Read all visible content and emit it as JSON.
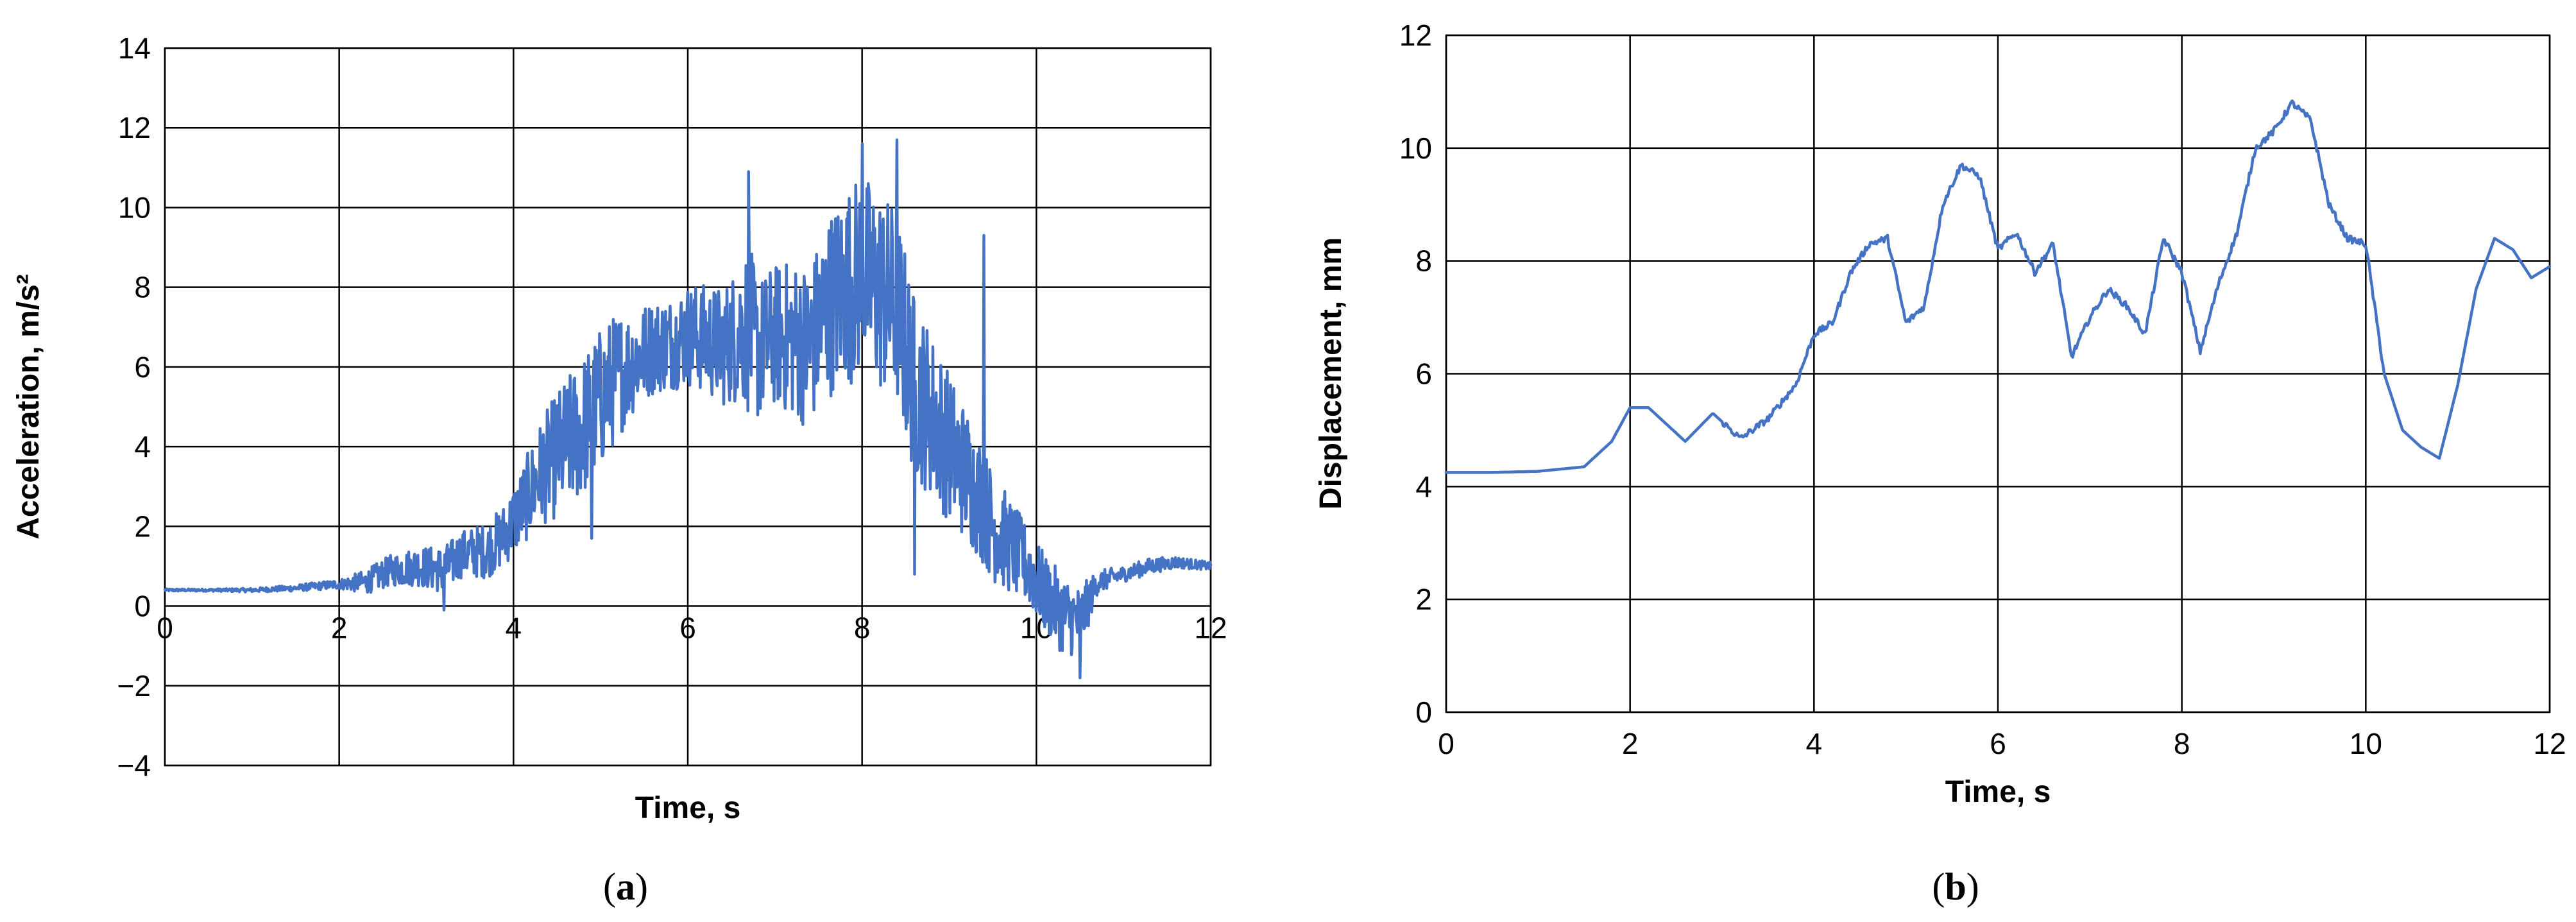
{
  "chart_data": [
    {
      "type": "line",
      "panel": "a",
      "xlabel": "Time, s",
      "ylabel": "Acceleration, m/s²",
      "xlim": [
        0,
        12
      ],
      "ylim": [
        -4,
        14
      ],
      "xticks": [
        "0",
        "2",
        "4",
        "6",
        "8",
        "10",
        "12"
      ],
      "yticks": [
        "−4",
        "−2",
        "0",
        "2",
        "4",
        "6",
        "8",
        "10",
        "12",
        "14"
      ],
      "x_tick_placement": "at y = 0 line",
      "grid": true,
      "series_color": "#4472C4",
      "series": [
        {
          "x": [
            0,
            0.5,
            1.0,
            1.5,
            2.0,
            2.3,
            2.6,
            2.9,
            3.2,
            3.4,
            3.7,
            3.9,
            4.1,
            4.3,
            4.5,
            4.8,
            5.0,
            5.2,
            5.4,
            5.6,
            5.8,
            6.0,
            6.2,
            6.4,
            6.6,
            6.7,
            6.8,
            7.0,
            7.2,
            7.4,
            7.6,
            7.8,
            8.0,
            8.2,
            8.4,
            8.5,
            8.6,
            8.8,
            9.0,
            9.2,
            9.4,
            9.5,
            9.7,
            9.9,
            10.1,
            10.3,
            10.5,
            10.7,
            11.0,
            11.3,
            11.6,
            12.0
          ],
          "values": [
            0.4,
            0.4,
            0.4,
            0.45,
            0.55,
            0.6,
            0.9,
            1.0,
            0.9,
            1.3,
            1.4,
            1.8,
            2.5,
            3.3,
            3.8,
            4.5,
            5.2,
            5.8,
            6.2,
            6.5,
            6.6,
            6.8,
            6.7,
            6.5,
            6.9,
            7.0,
            6.4,
            6.8,
            6.7,
            6.5,
            7.5,
            8.0,
            8.3,
            7.9,
            7.5,
            6.5,
            5.5,
            4.8,
            4.0,
            3.3,
            2.5,
            2.0,
            1.5,
            1.0,
            0.3,
            -0.2,
            -0.4,
            0.6,
            0.8,
            1.0,
            1.1,
            1.0
          ],
          "noise_amplitude": [
            0.03,
            0.03,
            0.05,
            0.08,
            0.12,
            0.3,
            0.4,
            0.5,
            0.6,
            0.6,
            0.7,
            0.8,
            1.0,
            1.3,
            1.6,
            1.8,
            1.8,
            1.6,
            1.3,
            1.2,
            1.2,
            1.3,
            1.4,
            1.5,
            1.8,
            2.2,
            1.8,
            1.8,
            2.0,
            2.1,
            2.3,
            2.5,
            2.6,
            2.6,
            2.5,
            2.4,
            2.3,
            2.1,
            1.9,
            1.7,
            1.5,
            1.4,
            1.2,
            1.0,
            1.0,
            1.0,
            0.9,
            0.3,
            0.2,
            0.2,
            0.15,
            0.1
          ]
        }
      ],
      "spikes": [
        [
          6.7,
          10.9
        ],
        [
          8.0,
          11.6
        ],
        [
          8.4,
          11.7
        ],
        [
          9.4,
          9.3
        ],
        [
          10.5,
          -1.8
        ],
        [
          8.6,
          0.8
        ],
        [
          4.9,
          1.7
        ],
        [
          3.2,
          -0.1
        ]
      ]
    },
    {
      "type": "line",
      "panel": "b",
      "xlabel": "Time, s",
      "ylabel": "Displacement, mm",
      "xlim": [
        0,
        12
      ],
      "ylim": [
        0,
        12
      ],
      "xticks": [
        "0",
        "2",
        "4",
        "6",
        "8",
        "10",
        "12"
      ],
      "yticks": [
        "0",
        "2",
        "4",
        "6",
        "8",
        "10",
        "12"
      ],
      "grid": true,
      "series_color": "#4472C4",
      "series": [
        {
          "x": [
            0,
            0.5,
            1.0,
            1.5,
            1.8,
            2.0,
            2.2,
            2.4,
            2.6,
            2.9,
            3.2,
            3.5,
            3.8,
            4.0,
            4.2,
            4.4,
            4.6,
            4.8,
            5.0,
            5.2,
            5.4,
            5.6,
            5.8,
            6.0,
            6.2,
            6.4,
            6.6,
            6.8,
            7.0,
            7.2,
            7.4,
            7.6,
            7.8,
            8.0,
            8.2,
            8.4,
            8.6,
            8.8,
            9.0,
            9.2,
            9.4,
            9.6,
            9.8,
            10.0,
            10.2,
            10.4,
            10.6,
            10.8,
            11.0,
            11.2,
            11.4,
            11.6,
            11.8,
            12.0
          ],
          "values": [
            4.25,
            4.25,
            4.27,
            4.35,
            4.8,
            5.4,
            5.4,
            5.1,
            4.8,
            5.3,
            4.85,
            5.2,
            5.8,
            6.7,
            6.9,
            7.8,
            8.3,
            8.4,
            6.9,
            7.2,
            9.0,
            9.7,
            9.5,
            8.2,
            8.5,
            7.8,
            8.3,
            6.3,
            7.0,
            7.5,
            7.2,
            6.7,
            8.4,
            7.8,
            6.4,
            7.6,
            8.5,
            10.0,
            10.3,
            10.8,
            10.5,
            9.0,
            8.4,
            8.3,
            6.0,
            5.0,
            4.7,
            4.5,
            5.8,
            7.5,
            8.4,
            8.2,
            7.7,
            7.9
          ]
        }
      ]
    }
  ],
  "panels": {
    "a": {
      "label_open": "(",
      "label_letter": "a",
      "label_close": ")"
    },
    "b": {
      "label_open": "(",
      "label_letter": "b",
      "label_close": ")"
    }
  }
}
